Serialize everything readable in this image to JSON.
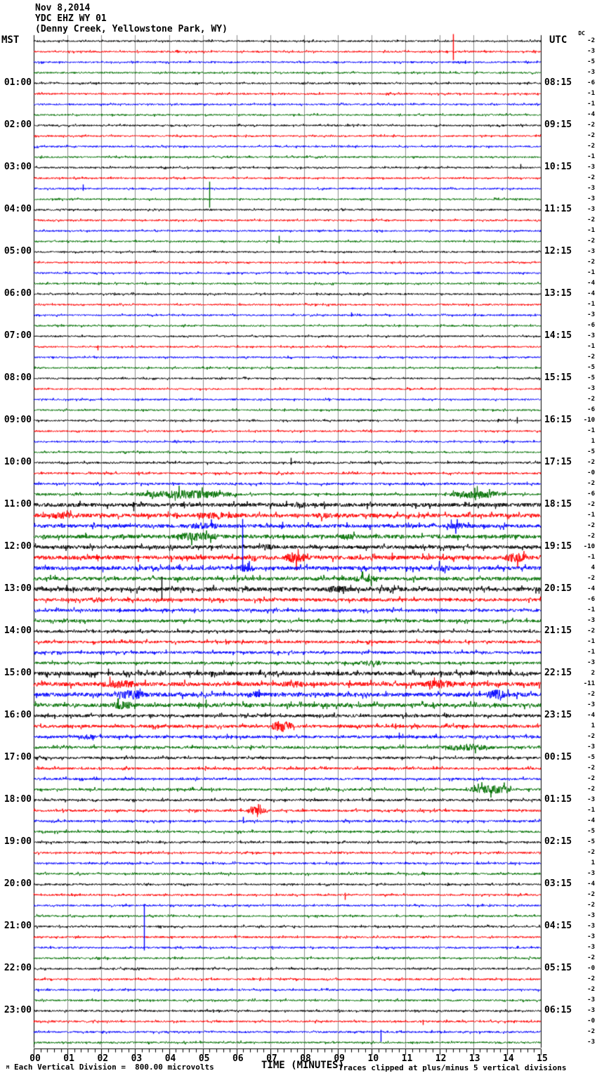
{
  "header": {
    "date": "Nov 8,2014",
    "station": "YDC EHZ WY 01",
    "location": "(Denny Creek, Yellowstone Park, WY)"
  },
  "axis": {
    "left_tz": "MST",
    "right_tz": "UTC",
    "dc_label": "DC",
    "x_title": "TIME (MINUTES)",
    "x_ticks": [
      "00",
      "01",
      "02",
      "03",
      "04",
      "05",
      "06",
      "07",
      "08",
      "09",
      "10",
      "11",
      "12",
      "13",
      "14",
      "15"
    ]
  },
  "footer": {
    "corner_mark": "M",
    "division_note": "Each Vertical Division =  800.00 microvolts",
    "clip_note": "Traces clipped at plus/minus 5 vertical divisions"
  },
  "colors": {
    "black": "#000000",
    "red": "#ff0000",
    "blue": "#0000ff",
    "green": "#007000",
    "grid": "#8c8c8c"
  },
  "left_hour_labels": [
    "01:00",
    "02:00",
    "03:00",
    "04:00",
    "05:00",
    "06:00",
    "07:00",
    "08:00",
    "09:00",
    "10:00",
    "11:00",
    "12:00",
    "13:00",
    "14:00",
    "15:00",
    "16:00",
    "17:00",
    "18:00",
    "19:00",
    "20:00",
    "21:00",
    "22:00",
    "23:00"
  ],
  "right_hour_labels": [
    "08:15",
    "09:15",
    "10:15",
    "11:15",
    "12:15",
    "13:15",
    "14:15",
    "15:15",
    "16:15",
    "17:15",
    "18:15",
    "19:15",
    "20:15",
    "21:15",
    "22:15",
    "23:15",
    "00:15",
    "01:15",
    "02:15",
    "03:15",
    "04:15",
    "05:15",
    "06:15"
  ],
  "chart_data": {
    "type": "line",
    "title": "Helicorder seismogram YDC EHZ WY 01, Nov 8 2014 (Denny Creek, Yellowstone Park, WY)",
    "xlabel": "TIME (MINUTES)",
    "x_range": [
      0,
      15
    ],
    "traces_per_hour": 4,
    "trace_duration_minutes": 15,
    "color_cycle": [
      "black",
      "red",
      "blue",
      "green"
    ],
    "dc_units": "vertical divisions of 800.00 microvolts, clipped at +/-5",
    "traces": [
      {
        "i": 0,
        "c": "black",
        "dc": "-2",
        "a": 1.1
      },
      {
        "i": 1,
        "c": "red",
        "dc": "-3",
        "a": 1.1,
        "ev": [
          {
            "m": 12.4,
            "u": 25,
            "d": 12
          }
        ]
      },
      {
        "i": 2,
        "c": "blue",
        "dc": "-5",
        "a": 1.1
      },
      {
        "i": 3,
        "c": "green",
        "dc": "-3",
        "a": 1.1
      },
      {
        "i": 4,
        "c": "black",
        "dc": "-6",
        "a": 1.1
      },
      {
        "i": 5,
        "c": "red",
        "dc": "-1",
        "a": 1.1
      },
      {
        "i": 6,
        "c": "blue",
        "dc": "-1",
        "a": 1.1
      },
      {
        "i": 7,
        "c": "green",
        "dc": "-4",
        "a": 1.1
      },
      {
        "i": 8,
        "c": "black",
        "dc": "-2",
        "a": 1.1
      },
      {
        "i": 9,
        "c": "red",
        "dc": "-2",
        "a": 1.1
      },
      {
        "i": 10,
        "c": "blue",
        "dc": "-2",
        "a": 1.1
      },
      {
        "i": 11,
        "c": "green",
        "dc": "-1",
        "a": 1.1
      },
      {
        "i": 12,
        "c": "black",
        "dc": "-3",
        "a": 1.1,
        "ev": [
          {
            "m": 14.4,
            "u": 5,
            "d": 2
          }
        ]
      },
      {
        "i": 13,
        "c": "red",
        "dc": "-2",
        "a": 1.1
      },
      {
        "i": 14,
        "c": "blue",
        "dc": "-3",
        "a": 1.1,
        "ev": [
          {
            "m": 1.45,
            "u": 6,
            "d": 3
          }
        ]
      },
      {
        "i": 15,
        "c": "green",
        "dc": "-3",
        "a": 1.1,
        "ev": [
          {
            "m": 5.19,
            "u": 25,
            "d": 12
          }
        ]
      },
      {
        "i": 16,
        "c": "black",
        "dc": "-3",
        "a": 1.1
      },
      {
        "i": 17,
        "c": "red",
        "dc": "-2",
        "a": 1.1
      },
      {
        "i": 18,
        "c": "blue",
        "dc": "-1",
        "a": 1.1
      },
      {
        "i": 19,
        "c": "green",
        "dc": "-2",
        "a": 1.1,
        "ev": [
          {
            "m": 7.25,
            "u": 8,
            "d": 3
          }
        ]
      },
      {
        "i": 20,
        "c": "black",
        "dc": "-3",
        "a": 1.1
      },
      {
        "i": 21,
        "c": "red",
        "dc": "-2",
        "a": 1.1
      },
      {
        "i": 22,
        "c": "blue",
        "dc": "-1",
        "a": 1.1
      },
      {
        "i": 23,
        "c": "green",
        "dc": "-4",
        "a": 1.1
      },
      {
        "i": 24,
        "c": "black",
        "dc": "-4",
        "a": 1.1
      },
      {
        "i": 25,
        "c": "red",
        "dc": "-1",
        "a": 1.1
      },
      {
        "i": 26,
        "c": "blue",
        "dc": "-3",
        "a": 1.1,
        "ev": [
          {
            "m": 9.4,
            "u": 4,
            "d": 2
          }
        ]
      },
      {
        "i": 27,
        "c": "green",
        "dc": "-6",
        "a": 1.1
      },
      {
        "i": 28,
        "c": "black",
        "dc": "-3",
        "a": 1.1
      },
      {
        "i": 29,
        "c": "red",
        "dc": "-1",
        "a": 1.1,
        "ev": [
          {
            "m": 1.9,
            "u": 2,
            "d": 5
          }
        ]
      },
      {
        "i": 30,
        "c": "blue",
        "dc": "-2",
        "a": 1.1
      },
      {
        "i": 31,
        "c": "green",
        "dc": "-5",
        "a": 1.1
      },
      {
        "i": 32,
        "c": "black",
        "dc": "-5",
        "a": 1.1
      },
      {
        "i": 33,
        "c": "red",
        "dc": "-3",
        "a": 1.1
      },
      {
        "i": 34,
        "c": "blue",
        "dc": "-2",
        "a": 1.1
      },
      {
        "i": 35,
        "c": "green",
        "dc": "-6",
        "a": 1.1
      },
      {
        "i": 36,
        "c": "black",
        "dc": "-10",
        "a": 1.1,
        "ev": [
          {
            "m": 14.3,
            "u": 5,
            "d": 4
          }
        ]
      },
      {
        "i": 37,
        "c": "red",
        "dc": "-1",
        "a": 1.1
      },
      {
        "i": 38,
        "c": "blue",
        "dc": "1",
        "a": 1.1
      },
      {
        "i": 39,
        "c": "green",
        "dc": "-5",
        "a": 1.1
      },
      {
        "i": 40,
        "c": "black",
        "dc": "-2",
        "a": 1.3,
        "ev": [
          {
            "m": 7.6,
            "u": 7,
            "d": 3
          }
        ]
      },
      {
        "i": 41,
        "c": "red",
        "dc": "-0",
        "a": 1.3
      },
      {
        "i": 42,
        "c": "blue",
        "dc": "-2",
        "a": 1.4
      },
      {
        "i": 43,
        "c": "green",
        "dc": "-6",
        "a": 1.5,
        "bu": [
          {
            "m0": 3.0,
            "m1": 6.0,
            "a": 6
          },
          {
            "m0": 12.3,
            "m1": 14.0,
            "a": 6
          }
        ]
      },
      {
        "i": 44,
        "c": "black",
        "dc": "-2",
        "a": 2.6,
        "ev": [
          {
            "m": 2.95,
            "u": 4,
            "d": 9
          }
        ],
        "bu": [
          {
            "m0": 7.5,
            "m1": 8.5,
            "a": 4
          }
        ]
      },
      {
        "i": 45,
        "c": "red",
        "dc": "-1",
        "a": 2.6,
        "bu": [
          {
            "m0": 0.3,
            "m1": 1.6,
            "a": 5
          },
          {
            "m0": 4.6,
            "m1": 6.2,
            "a": 5
          },
          {
            "m0": 8.0,
            "m1": 9.0,
            "a": 4
          }
        ]
      },
      {
        "i": 46,
        "c": "blue",
        "dc": "-2",
        "a": 2.4,
        "ev": [
          {
            "m": 7.35,
            "u": 6,
            "d": 3
          }
        ],
        "bu": [
          {
            "m0": 4.5,
            "m1": 5.6,
            "a": 5
          },
          {
            "m0": 12.1,
            "m1": 12.9,
            "a": 5
          }
        ]
      },
      {
        "i": 47,
        "c": "green",
        "dc": "-2",
        "a": 2.6,
        "bu": [
          {
            "m0": 4.0,
            "m1": 5.6,
            "a": 6
          },
          {
            "m0": 9.0,
            "m1": 9.6,
            "a": 5
          }
        ]
      },
      {
        "i": 48,
        "c": "black",
        "dc": "-10",
        "a": 2.4,
        "bu": [
          {
            "m0": 6.6,
            "m1": 7.2,
            "a": 5
          }
        ]
      },
      {
        "i": 49,
        "c": "red",
        "dc": "-1",
        "a": 2.8,
        "ev": [
          {
            "m": 10.6,
            "u": 7,
            "d": 4
          }
        ],
        "bu": [
          {
            "m0": 7.4,
            "m1": 8.1,
            "a": 8
          },
          {
            "m0": 13.9,
            "m1": 14.6,
            "a": 7
          }
        ]
      },
      {
        "i": 50,
        "c": "blue",
        "dc": "4",
        "a": 2.6,
        "ev": [
          {
            "m": 6.17,
            "u": 70,
            "d": 5
          }
        ],
        "bu": [
          {
            "m0": 6.0,
            "m1": 6.6,
            "a": 6
          },
          {
            "m0": 11.8,
            "m1": 12.4,
            "a": 5
          }
        ]
      },
      {
        "i": 51,
        "c": "green",
        "dc": "-2",
        "a": 2.4,
        "bu": [
          {
            "m0": 9.3,
            "m1": 10.3,
            "a": 5
          }
        ]
      },
      {
        "i": 52,
        "c": "black",
        "dc": "-4",
        "a": 2.8,
        "ev": [
          {
            "m": 3.78,
            "u": 18,
            "d": 16
          }
        ],
        "bu": [
          {
            "m0": 8.5,
            "m1": 9.5,
            "a": 5
          }
        ]
      },
      {
        "i": 53,
        "c": "red",
        "dc": "-6",
        "a": 2.2,
        "bu": [
          {
            "m0": 1.5,
            "m1": 2.2,
            "a": 4
          }
        ]
      },
      {
        "i": 54,
        "c": "blue",
        "dc": "-1",
        "a": 2.0
      },
      {
        "i": 55,
        "c": "green",
        "dc": "-3",
        "a": 2.0
      },
      {
        "i": 56,
        "c": "black",
        "dc": "-2",
        "a": 1.8
      },
      {
        "i": 57,
        "c": "red",
        "dc": "-1",
        "a": 1.8,
        "ev": [
          {
            "m": 10.0,
            "u": 3,
            "d": 6
          }
        ]
      },
      {
        "i": 58,
        "c": "blue",
        "dc": "-1",
        "a": 1.8
      },
      {
        "i": 59,
        "c": "green",
        "dc": "-3",
        "a": 1.8,
        "bu": [
          {
            "m0": 9.5,
            "m1": 10.5,
            "a": 4
          }
        ]
      },
      {
        "i": 60,
        "c": "black",
        "dc": "2",
        "a": 2.6,
        "ev": [
          {
            "m": 2.2,
            "u": 7,
            "d": 3
          },
          {
            "m": 9.0,
            "u": 6,
            "d": 3
          }
        ]
      },
      {
        "i": 61,
        "c": "red",
        "dc": "-11",
        "a": 2.8,
        "bu": [
          {
            "m0": 1.8,
            "m1": 3.2,
            "a": 6
          },
          {
            "m0": 7.2,
            "m1": 8.2,
            "a": 5
          },
          {
            "m0": 11.4,
            "m1": 12.6,
            "a": 6
          }
        ]
      },
      {
        "i": 62,
        "c": "blue",
        "dc": "-2",
        "a": 2.8,
        "bu": [
          {
            "m0": 2.4,
            "m1": 3.4,
            "a": 7
          },
          {
            "m0": 6.3,
            "m1": 6.8,
            "a": 5
          },
          {
            "m0": 13.3,
            "m1": 14.1,
            "a": 7
          }
        ]
      },
      {
        "i": 63,
        "c": "green",
        "dc": "-3",
        "a": 2.6,
        "ev": [
          {
            "m": 2.5,
            "u": 10,
            "d": 5
          },
          {
            "m": 5.1,
            "u": 8,
            "d": 4
          }
        ],
        "bu": [
          {
            "m0": 2.2,
            "m1": 3.0,
            "a": 6
          }
        ]
      },
      {
        "i": 64,
        "c": "black",
        "dc": "-4",
        "a": 2.0
      },
      {
        "i": 65,
        "c": "red",
        "dc": "1",
        "a": 2.0,
        "ev": [
          {
            "m": 10.7,
            "u": 4,
            "d": 4
          }
        ],
        "bu": [
          {
            "m0": 7.0,
            "m1": 7.7,
            "a": 8
          }
        ]
      },
      {
        "i": 66,
        "c": "blue",
        "dc": "-2",
        "a": 1.9,
        "ev": [
          {
            "m": 10.8,
            "u": 6,
            "d": 3
          }
        ],
        "bu": [
          {
            "m0": 1.3,
            "m1": 1.9,
            "a": 4
          }
        ]
      },
      {
        "i": 67,
        "c": "green",
        "dc": "-3",
        "a": 1.8,
        "bu": [
          {
            "m0": 12.0,
            "m1": 13.6,
            "a": 5
          }
        ]
      },
      {
        "i": 68,
        "c": "black",
        "dc": "-5",
        "a": 1.6
      },
      {
        "i": 69,
        "c": "red",
        "dc": "-2",
        "a": 1.5
      },
      {
        "i": 70,
        "c": "blue",
        "dc": "-2",
        "a": 1.5
      },
      {
        "i": 71,
        "c": "green",
        "dc": "-2",
        "a": 1.6,
        "bu": [
          {
            "m0": 12.8,
            "m1": 14.2,
            "a": 6
          }
        ]
      },
      {
        "i": 72,
        "c": "black",
        "dc": "-3",
        "a": 1.5
      },
      {
        "i": 73,
        "c": "red",
        "dc": "-1",
        "a": 1.5,
        "bu": [
          {
            "m0": 6.3,
            "m1": 6.9,
            "a": 6
          }
        ]
      },
      {
        "i": 74,
        "c": "blue",
        "dc": "-4",
        "a": 1.4,
        "ev": [
          {
            "m": 6.2,
            "u": 6,
            "d": 3
          }
        ]
      },
      {
        "i": 75,
        "c": "green",
        "dc": "-5",
        "a": 1.4
      },
      {
        "i": 76,
        "c": "black",
        "dc": "-5",
        "a": 1.3
      },
      {
        "i": 77,
        "c": "red",
        "dc": "-2",
        "a": 1.3
      },
      {
        "i": 78,
        "c": "blue",
        "dc": "1",
        "a": 1.3
      },
      {
        "i": 79,
        "c": "green",
        "dc": "-3",
        "a": 1.3
      },
      {
        "i": 80,
        "c": "black",
        "dc": "-4",
        "a": 1.2
      },
      {
        "i": 81,
        "c": "red",
        "dc": "-2",
        "a": 1.2,
        "ev": [
          {
            "m": 9.2,
            "u": 3,
            "d": 7
          }
        ]
      },
      {
        "i": 82,
        "c": "blue",
        "dc": "-2",
        "a": 1.2
      },
      {
        "i": 83,
        "c": "green",
        "dc": "-3",
        "a": 1.2
      },
      {
        "i": 84,
        "c": "black",
        "dc": "-3",
        "a": 1.2
      },
      {
        "i": 85,
        "c": "red",
        "dc": "-3",
        "a": 1.2
      },
      {
        "i": 86,
        "c": "blue",
        "dc": "-3",
        "a": 1.2,
        "ev": [
          {
            "m": 3.27,
            "u": 62,
            "d": 4
          }
        ]
      },
      {
        "i": 87,
        "c": "green",
        "dc": "-2",
        "a": 1.2
      },
      {
        "i": 88,
        "c": "black",
        "dc": "-0",
        "a": 1.2
      },
      {
        "i": 89,
        "c": "red",
        "dc": "-2",
        "a": 1.2
      },
      {
        "i": 90,
        "c": "blue",
        "dc": "-2",
        "a": 1.2
      },
      {
        "i": 91,
        "c": "green",
        "dc": "-3",
        "a": 1.2
      },
      {
        "i": 92,
        "c": "black",
        "dc": "-3",
        "a": 1.2
      },
      {
        "i": 93,
        "c": "red",
        "dc": "-0",
        "a": 1.2,
        "ev": [
          {
            "m": 11.5,
            "u": 2,
            "d": 5
          }
        ]
      },
      {
        "i": 94,
        "c": "blue",
        "dc": "-2",
        "a": 1.2,
        "ev": [
          {
            "m": 10.26,
            "u": 3,
            "d": 14
          }
        ]
      },
      {
        "i": 95,
        "c": "green",
        "dc": "-3",
        "a": 1.2
      }
    ]
  }
}
